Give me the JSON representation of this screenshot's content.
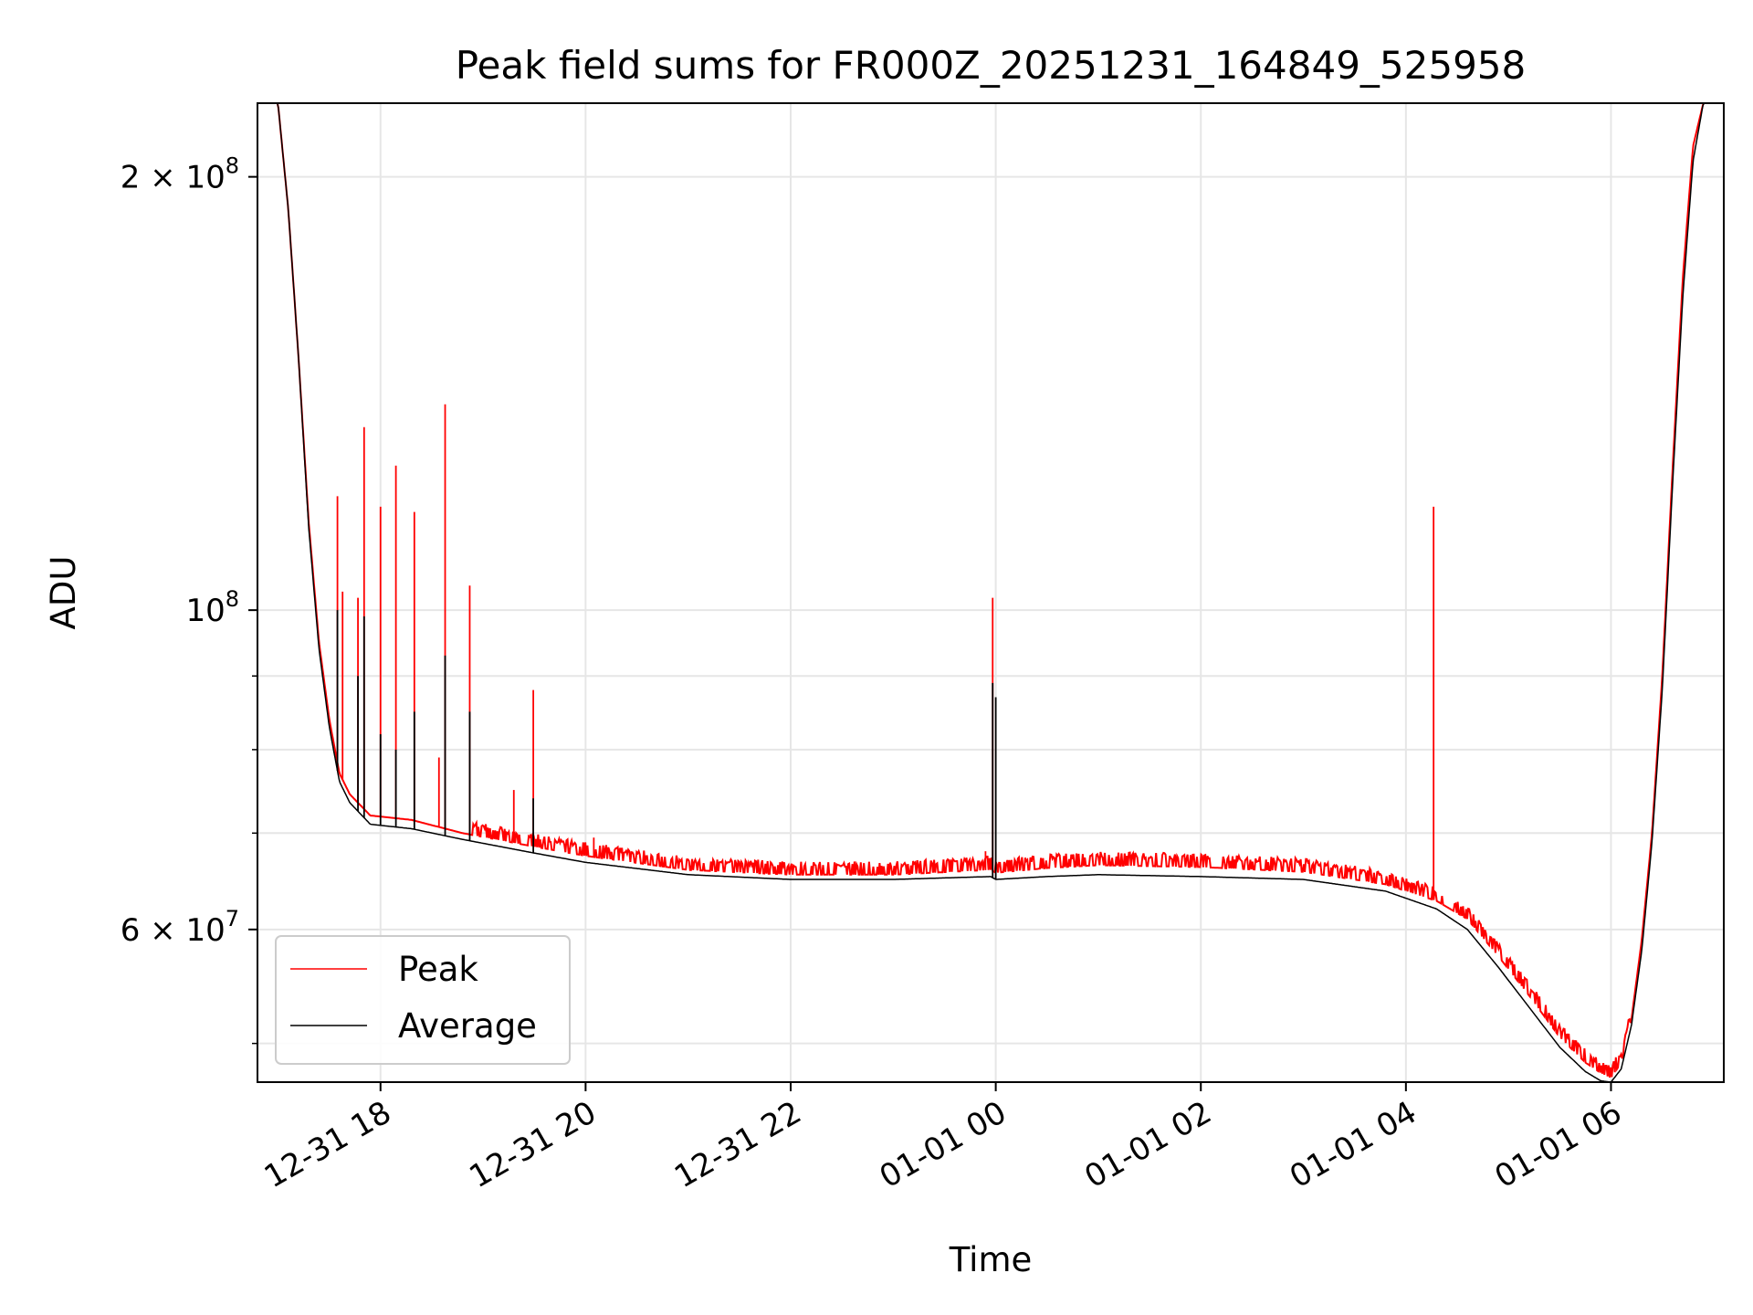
{
  "chart_data": {
    "type": "line",
    "title": "Peak field sums for FR000Z_20251231_164849_525958",
    "xlabel": "Time",
    "ylabel": "ADU",
    "yscale": "log",
    "xlim": [
      16.8,
      31.1
    ],
    "ylim": [
      47000000,
      225000000
    ],
    "grid": true,
    "legend_position": "lower-left",
    "x_ticks": [
      {
        "value": 18,
        "label": "12-31 18"
      },
      {
        "value": 20,
        "label": "12-31 20"
      },
      {
        "value": 22,
        "label": "12-31 22"
      },
      {
        "value": 24,
        "label": "01-01 00"
      },
      {
        "value": 26,
        "label": "01-01 02"
      },
      {
        "value": 28,
        "label": "01-01 04"
      },
      {
        "value": 30,
        "label": "01-01 06"
      }
    ],
    "y_major_ticks": [
      {
        "value": 60000000,
        "mantissa": "6 × 10",
        "exp": "7"
      },
      {
        "value": 100000000,
        "mantissa": "10",
        "exp": "8"
      },
      {
        "value": 200000000,
        "mantissa": "2 × 10",
        "exp": "8"
      }
    ],
    "y_minor_ticks": [
      50000000,
      70000000,
      80000000,
      90000000
    ],
    "series": [
      {
        "name": "Peak",
        "color": "#ff0000",
        "x": [
          16.8,
          17.0,
          17.1,
          17.2,
          17.3,
          17.4,
          17.5,
          17.6,
          17.7,
          17.9,
          18.3,
          18.8,
          19.5,
          20.0,
          21.0,
          22.0,
          23.0,
          23.95,
          24.0,
          24.5,
          25.0,
          26.0,
          27.0,
          27.8,
          28.3,
          28.6,
          28.9,
          29.2,
          29.5,
          29.75,
          29.9,
          30.0,
          30.1,
          30.2,
          30.3,
          30.4,
          30.5,
          30.6,
          30.7,
          30.8,
          30.9,
          31.1
        ],
        "y": [
          225000000,
          225000000,
          190000000,
          150000000,
          115000000,
          95000000,
          84000000,
          77000000,
          74500000,
          72000000,
          71500000,
          70000000,
          68500000,
          67500000,
          66000000,
          65500000,
          65500000,
          66000000,
          65700000,
          66200000,
          66500000,
          66300000,
          65800000,
          64500000,
          62800000,
          61000000,
          57500000,
          54000000,
          50500000,
          48500000,
          47700000,
          47300000,
          48500000,
          52000000,
          59000000,
          70000000,
          90000000,
          125000000,
          170000000,
          210000000,
          225000000,
          225000000
        ],
        "spikes": [
          {
            "x": 17.58,
            "y": 120000000
          },
          {
            "x": 17.63,
            "y": 103000000
          },
          {
            "x": 17.78,
            "y": 102000000
          },
          {
            "x": 17.84,
            "y": 134000000
          },
          {
            "x": 18.0,
            "y": 118000000
          },
          {
            "x": 18.15,
            "y": 126000000
          },
          {
            "x": 18.33,
            "y": 117000000
          },
          {
            "x": 18.57,
            "y": 79000000
          },
          {
            "x": 18.63,
            "y": 139000000
          },
          {
            "x": 18.87,
            "y": 104000000
          },
          {
            "x": 19.3,
            "y": 75000000
          },
          {
            "x": 19.49,
            "y": 88000000
          },
          {
            "x": 20.08,
            "y": 69500000
          },
          {
            "x": 23.9,
            "y": 68000000
          },
          {
            "x": 23.97,
            "y": 102000000
          },
          {
            "x": 25.9,
            "y": 67500000
          },
          {
            "x": 28.27,
            "y": 118000000
          }
        ]
      },
      {
        "name": "Average",
        "color": "#000000",
        "x": [
          16.8,
          17.0,
          17.1,
          17.2,
          17.3,
          17.4,
          17.5,
          17.6,
          17.7,
          17.9,
          18.3,
          18.8,
          19.5,
          20.0,
          21.0,
          22.0,
          23.0,
          23.95,
          24.0,
          24.5,
          25.0,
          26.0,
          27.0,
          27.8,
          28.3,
          28.6,
          28.9,
          29.2,
          29.5,
          29.75,
          29.9,
          30.0,
          30.1,
          30.2,
          30.3,
          30.4,
          30.5,
          30.6,
          30.7,
          30.8,
          30.9,
          31.1
        ],
        "y": [
          225000000,
          225000000,
          190000000,
          150000000,
          114000000,
          94000000,
          83000000,
          76000000,
          73500000,
          71000000,
          70500000,
          69300000,
          67800000,
          66800000,
          65500000,
          65000000,
          65000000,
          65300000,
          65000000,
          65300000,
          65500000,
          65300000,
          65000000,
          63800000,
          62000000,
          60000000,
          56500000,
          53000000,
          49700000,
          47800000,
          47100000,
          47000000,
          48000000,
          51500000,
          58000000,
          69000000,
          88000000,
          122000000,
          165000000,
          205000000,
          225000000,
          225000000
        ],
        "spikes": [
          {
            "x": 17.58,
            "y": 100000000
          },
          {
            "x": 17.78,
            "y": 90000000
          },
          {
            "x": 17.84,
            "y": 99000000
          },
          {
            "x": 18.0,
            "y": 82000000
          },
          {
            "x": 18.15,
            "y": 80000000
          },
          {
            "x": 18.33,
            "y": 85000000
          },
          {
            "x": 18.63,
            "y": 93000000
          },
          {
            "x": 18.87,
            "y": 85000000
          },
          {
            "x": 19.49,
            "y": 74000000
          },
          {
            "x": 23.97,
            "y": 89000000
          },
          {
            "x": 24.0,
            "y": 87000000
          }
        ]
      }
    ]
  }
}
